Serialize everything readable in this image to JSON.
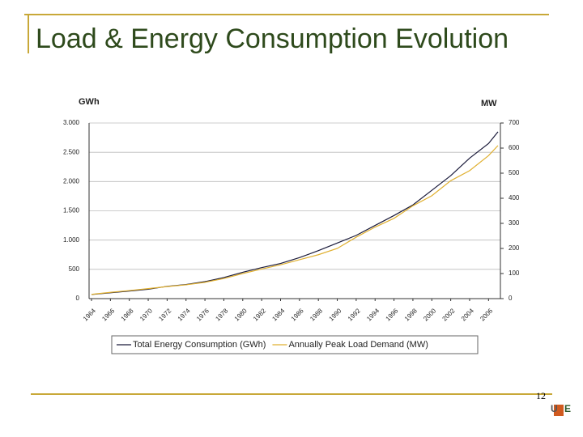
{
  "slide": {
    "title": "Load & Energy Consumption Evolution",
    "page_number": "12"
  },
  "chart_data": {
    "type": "line",
    "y_label": "GWh",
    "y2_label": "MW",
    "x": [
      1964,
      1966,
      1968,
      1970,
      1972,
      1974,
      1976,
      1978,
      1980,
      1982,
      1984,
      1986,
      1988,
      1990,
      1992,
      1994,
      1996,
      1998,
      2000,
      2002,
      2004,
      2006,
      2007
    ],
    "xlim": [
      1964,
      2007
    ],
    "xticks": [
      1964,
      1966,
      1968,
      1970,
      1972,
      1974,
      1976,
      1978,
      1980,
      1982,
      1984,
      1986,
      1988,
      1990,
      1992,
      1994,
      1996,
      1998,
      2000,
      2002,
      2004,
      2006
    ],
    "ylim": [
      0,
      3000
    ],
    "yticks": [
      {
        "value": 0,
        "label": "0"
      },
      {
        "value": 500,
        "label": "500"
      },
      {
        "value": 1000,
        "label": "1.000"
      },
      {
        "value": 1500,
        "label": "1.500"
      },
      {
        "value": 2000,
        "label": "2.000"
      },
      {
        "value": 2500,
        "label": "2.500"
      },
      {
        "value": 3000,
        "label": "3.000"
      }
    ],
    "y2lim": [
      0,
      700
    ],
    "y2ticks": [
      0,
      100,
      200,
      300,
      400,
      500,
      600,
      700
    ],
    "grid": true,
    "legend": "bottom",
    "series": [
      {
        "name": "Total Energy Consumption (GWh)",
        "color": "#1a1a3a",
        "values": [
          70,
          100,
          130,
          160,
          210,
          240,
          290,
          360,
          450,
          530,
          600,
          700,
          820,
          950,
          1080,
          1250,
          1420,
          1600,
          1850,
          2100,
          2400,
          2650,
          2850
        ]
      },
      {
        "name": "Annually Peak Load Demand (MW)",
        "color": "#e0b030",
        "axis": "y2",
        "values": [
          17,
          25,
          32,
          40,
          48,
          55,
          65,
          80,
          100,
          118,
          135,
          155,
          175,
          200,
          245,
          285,
          320,
          370,
          410,
          470,
          510,
          570,
          610
        ]
      }
    ]
  }
}
